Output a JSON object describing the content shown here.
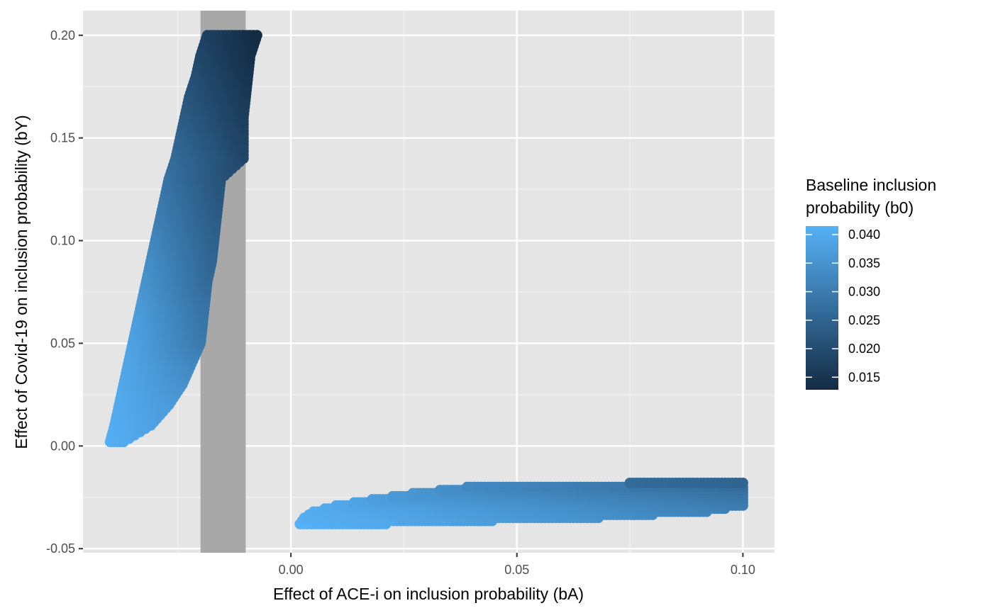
{
  "chart_data": {
    "type": "scatter",
    "title": "",
    "xlabel": "Effect of ACE-i on inclusion probability (bA)",
    "ylabel": "Effect of Covid-19 on inclusion probability (bY)",
    "xlim": [
      -0.046,
      0.107
    ],
    "ylim": [
      -0.052,
      0.212
    ],
    "x_ticks": [
      0.0,
      0.05,
      0.1
    ],
    "x_tick_labels": [
      "0.00",
      "0.05",
      "0.10"
    ],
    "y_ticks": [
      -0.05,
      0.0,
      0.05,
      0.1,
      0.15,
      0.2
    ],
    "y_tick_labels": [
      "-0.05",
      "0.00",
      "0.05",
      "0.10",
      "0.15",
      "0.20"
    ],
    "grid": true,
    "panel_background": "#e5e5e5",
    "shaded_band": {
      "xmin": -0.02,
      "xmax": -0.01,
      "color": "#a8a8a8"
    },
    "color_scale": {
      "title": [
        "Baseline inclusion",
        "probability (b0)"
      ],
      "low_value": 0.0128,
      "high_value": 0.0415,
      "low_color": "#132b43",
      "high_color": "#56b1f7",
      "breaks": [
        0.04,
        0.035,
        0.03,
        0.025,
        0.02,
        0.015
      ],
      "break_labels": [
        "0.040",
        "0.035",
        "0.030",
        "0.025",
        "0.020",
        "0.015"
      ],
      "legend_position": "right"
    },
    "regions": [
      {
        "name": "",
        "description_of_extent": "upper-left band",
        "rows": [
          {
            "y": 0.002,
            "x0": -0.04,
            "x1": -0.037,
            "b0_left": 0.041,
            "b0_right": 0.04
          },
          {
            "y": 0.01,
            "x0": -0.039,
            "x1": -0.031,
            "b0_left": 0.0405,
            "b0_right": 0.0385
          },
          {
            "y": 0.02,
            "x0": -0.038,
            "x1": -0.027,
            "b0_left": 0.04,
            "b0_right": 0.037
          },
          {
            "y": 0.03,
            "x0": -0.037,
            "x1": -0.024,
            "b0_left": 0.0395,
            "b0_right": 0.035
          },
          {
            "y": 0.04,
            "x0": -0.036,
            "x1": -0.022,
            "b0_left": 0.039,
            "b0_right": 0.033
          },
          {
            "y": 0.05,
            "x0": -0.035,
            "x1": -0.02,
            "b0_left": 0.0385,
            "b0_right": 0.03
          },
          {
            "y": 0.06,
            "x0": -0.034,
            "x1": -0.0195,
            "b0_left": 0.0375,
            "b0_right": 0.029
          },
          {
            "y": 0.07,
            "x0": -0.033,
            "x1": -0.019,
            "b0_left": 0.0365,
            "b0_right": 0.028
          },
          {
            "y": 0.08,
            "x0": -0.032,
            "x1": -0.0185,
            "b0_left": 0.035,
            "b0_right": 0.0265
          },
          {
            "y": 0.09,
            "x0": -0.031,
            "x1": -0.0175,
            "b0_left": 0.034,
            "b0_right": 0.0255
          },
          {
            "y": 0.1,
            "x0": -0.03,
            "x1": -0.017,
            "b0_left": 0.0325,
            "b0_right": 0.0245
          },
          {
            "y": 0.11,
            "x0": -0.029,
            "x1": -0.0165,
            "b0_left": 0.031,
            "b0_right": 0.0235
          },
          {
            "y": 0.12,
            "x0": -0.028,
            "x1": -0.016,
            "b0_left": 0.0295,
            "b0_right": 0.0225
          },
          {
            "y": 0.13,
            "x0": -0.027,
            "x1": -0.0155,
            "b0_left": 0.028,
            "b0_right": 0.0215
          },
          {
            "y": 0.14,
            "x0": -0.0255,
            "x1": -0.0105,
            "b0_left": 0.0265,
            "b0_right": 0.019
          },
          {
            "y": 0.15,
            "x0": -0.0245,
            "x1": -0.0105,
            "b0_left": 0.025,
            "b0_right": 0.018
          },
          {
            "y": 0.16,
            "x0": -0.0235,
            "x1": -0.0105,
            "b0_left": 0.0235,
            "b0_right": 0.017
          },
          {
            "y": 0.17,
            "x0": -0.0225,
            "x1": -0.01,
            "b0_left": 0.022,
            "b0_right": 0.016
          },
          {
            "y": 0.18,
            "x0": -0.021,
            "x1": -0.0095,
            "b0_left": 0.0205,
            "b0_right": 0.015
          },
          {
            "y": 0.19,
            "x0": -0.02,
            "x1": -0.009,
            "b0_left": 0.019,
            "b0_right": 0.014
          },
          {
            "y": 0.2,
            "x0": -0.0185,
            "x1": -0.0075,
            "b0_left": 0.0175,
            "b0_right": 0.013
          }
        ]
      },
      {
        "name": "",
        "description_of_extent": "lower-right band",
        "rows": [
          {
            "y": -0.038,
            "x0": 0.002,
            "x1": 0.021,
            "b0_left": 0.0415,
            "b0_right": 0.0395
          },
          {
            "y": -0.035,
            "x0": 0.003,
            "x1": 0.068,
            "b0_left": 0.041,
            "b0_right": 0.035
          },
          {
            "y": -0.032,
            "x0": 0.005,
            "x1": 0.092,
            "b0_left": 0.0405,
            "b0_right": 0.032
          },
          {
            "y": -0.029,
            "x0": 0.01,
            "x1": 0.1,
            "b0_left": 0.0395,
            "b0_right": 0.0305
          },
          {
            "y": -0.026,
            "x0": 0.018,
            "x1": 0.1,
            "b0_left": 0.0375,
            "b0_right": 0.0295
          },
          {
            "y": -0.023,
            "x0": 0.027,
            "x1": 0.1,
            "b0_left": 0.0355,
            "b0_right": 0.0285
          },
          {
            "y": -0.02,
            "x0": 0.039,
            "x1": 0.1,
            "b0_left": 0.033,
            "b0_right": 0.027
          },
          {
            "y": -0.018,
            "x0": 0.075,
            "x1": 0.1,
            "b0_left": 0.0265,
            "b0_right": 0.025
          }
        ]
      }
    ]
  }
}
